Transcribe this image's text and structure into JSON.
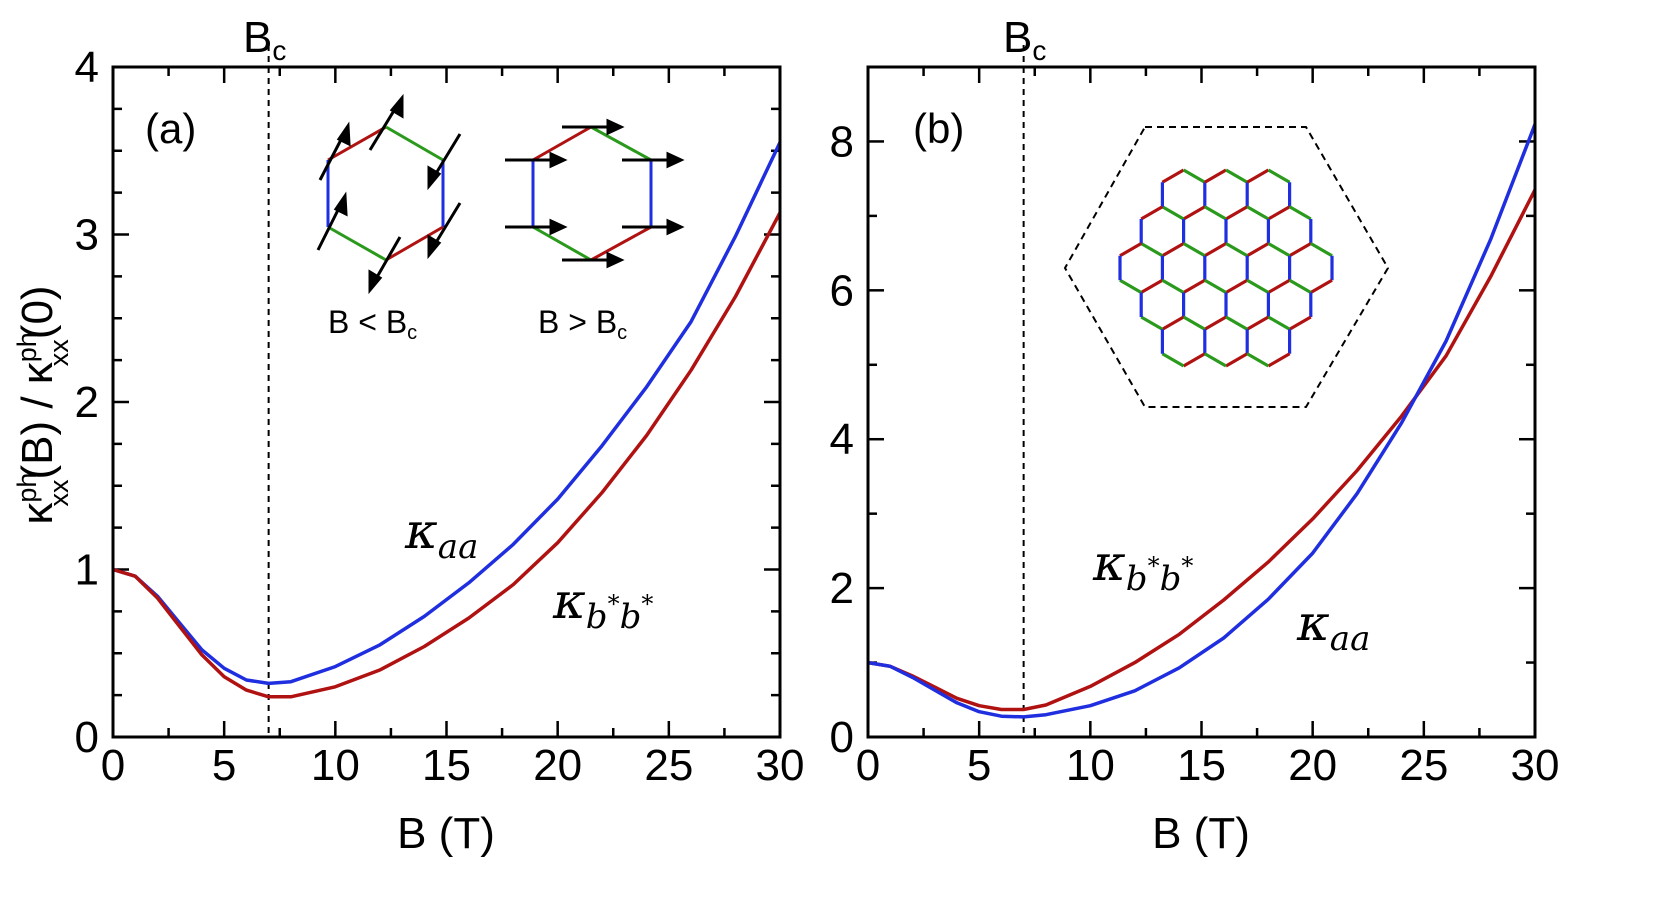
{
  "y_axis_label": {
    "kappa1": "κ",
    "sup1": "ph",
    "sub1": "xx",
    "mid": "(B) / ",
    "kappa2": "κ",
    "sup2": "ph",
    "sub2": "xx",
    "end": "(0)"
  },
  "colors": {
    "blue": "#1f2fe0",
    "red": "#b01212",
    "green": "#2a9a1c",
    "arrow": "#000000"
  },
  "panel_a": {
    "label": "(a)",
    "bc_label": {
      "main": "B",
      "sub": "c"
    },
    "xlabel": "B (T)",
    "curve_labels": {
      "aa": {
        "kappa": "κ",
        "sub": "aa"
      },
      "bb": {
        "kappa": "κ",
        "sub": "b",
        "sup1": "*",
        "sub2": "b",
        "sup2": "*"
      }
    },
    "inset": {
      "below": {
        "B": "B < B",
        "c": "c"
      },
      "above": {
        "B": "B > B",
        "c": "c"
      }
    }
  },
  "panel_b": {
    "label": "(b)",
    "bc_label": {
      "main": "B",
      "sub": "c"
    },
    "xlabel": "B (T)",
    "curve_labels": {
      "bb": {
        "kappa": "κ",
        "sub": "b",
        "sup1": "*",
        "sub2": "b",
        "sup2": "*"
      },
      "aa": {
        "kappa": "κ",
        "sub": "aa"
      }
    }
  },
  "chart_data": [
    {
      "type": "line",
      "panel": "(a)",
      "xlabel": "B (T)",
      "ylabel": "κxx^ph(B) / κxx^ph(0)",
      "xlim": [
        0,
        30
      ],
      "ylim": [
        0,
        4
      ],
      "xticks": [
        0,
        5,
        10,
        15,
        20,
        25,
        30
      ],
      "yticks": [
        0,
        1,
        2,
        3,
        4
      ],
      "vline": 7,
      "series": [
        {
          "name": "κaa",
          "color": "#1f2fe0",
          "x": [
            0,
            1,
            2,
            3,
            4,
            5,
            6,
            7,
            8,
            10,
            12,
            14,
            16,
            18,
            20,
            22,
            24,
            26,
            28,
            30
          ],
          "y": [
            1.0,
            0.96,
            0.84,
            0.68,
            0.52,
            0.41,
            0.34,
            0.32,
            0.33,
            0.42,
            0.55,
            0.72,
            0.92,
            1.15,
            1.42,
            1.74,
            2.09,
            2.48,
            2.99,
            3.55
          ]
        },
        {
          "name": "κb*b*",
          "color": "#b01212",
          "x": [
            0,
            1,
            2,
            3,
            4,
            5,
            6,
            7,
            8,
            10,
            12,
            14,
            16,
            18,
            20,
            22,
            24,
            26,
            28,
            30
          ],
          "y": [
            1.0,
            0.96,
            0.83,
            0.66,
            0.49,
            0.36,
            0.28,
            0.24,
            0.24,
            0.3,
            0.4,
            0.54,
            0.71,
            0.91,
            1.16,
            1.46,
            1.8,
            2.19,
            2.63,
            3.13
          ]
        }
      ]
    },
    {
      "type": "line",
      "panel": "(b)",
      "xlabel": "B (T)",
      "xlim": [
        0,
        30
      ],
      "ylim": [
        0,
        9
      ],
      "xticks": [
        0,
        5,
        10,
        15,
        20,
        25,
        30
      ],
      "yticks": [
        0,
        2,
        4,
        6,
        8
      ],
      "vline": 7,
      "series": [
        {
          "name": "κb*b*",
          "color": "#b01212",
          "x": [
            0,
            1,
            2,
            3,
            4,
            5,
            6,
            7,
            8,
            10,
            12,
            14,
            16,
            18,
            20,
            22,
            24,
            26,
            28,
            30
          ],
          "y": [
            1.0,
            0.95,
            0.82,
            0.67,
            0.52,
            0.42,
            0.37,
            0.37,
            0.43,
            0.68,
            1.0,
            1.38,
            1.84,
            2.35,
            2.93,
            3.58,
            4.31,
            5.12,
            6.18,
            7.35
          ]
        },
        {
          "name": "κaa",
          "color": "#1f2fe0",
          "x": [
            0,
            1,
            2,
            3,
            4,
            5,
            6,
            7,
            8,
            10,
            12,
            14,
            16,
            18,
            20,
            22,
            24,
            26,
            28,
            30
          ],
          "y": [
            1.0,
            0.95,
            0.8,
            0.63,
            0.46,
            0.34,
            0.28,
            0.27,
            0.3,
            0.42,
            0.62,
            0.93,
            1.33,
            1.85,
            2.47,
            3.27,
            4.22,
            5.32,
            6.68,
            8.23
          ]
        }
      ]
    }
  ]
}
